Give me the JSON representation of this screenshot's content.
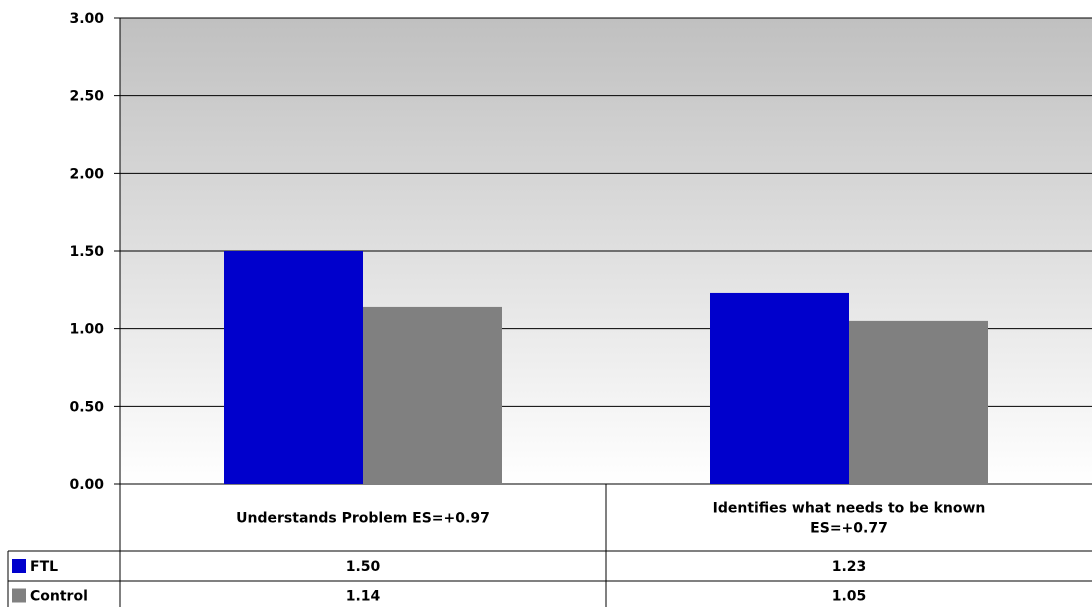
{
  "chart_data": {
    "type": "bar",
    "categories": [
      [
        "Understands Problem ES=+0.97"
      ],
      [
        "Identifies what needs to be known",
        "ES=+0.77"
      ]
    ],
    "series": [
      {
        "name": "FTL",
        "values": [
          1.5,
          1.23
        ],
        "labels": [
          "1.50",
          "1.23"
        ],
        "color": "#0000CC"
      },
      {
        "name": "Control",
        "values": [
          1.14,
          1.05
        ],
        "labels": [
          "1.14",
          "1.05"
        ],
        "color": "#808080"
      }
    ],
    "ylim": [
      0,
      3
    ],
    "yticks": [
      "0.00",
      "0.50",
      "1.00",
      "1.50",
      "2.00",
      "2.50",
      "3.00"
    ],
    "grid": true,
    "legend": "data-table",
    "plot_background": {
      "top": "#C0C0C0",
      "bottom": "#FFFFFF"
    }
  }
}
